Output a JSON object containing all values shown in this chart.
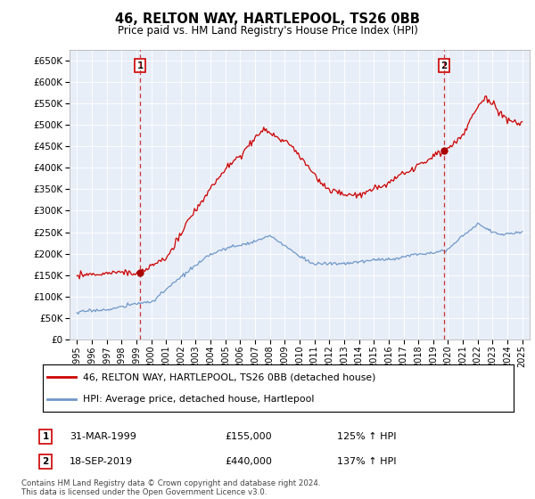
{
  "title": "46, RELTON WAY, HARTLEPOOL, TS26 0BB",
  "subtitle": "Price paid vs. HM Land Registry's House Price Index (HPI)",
  "hpi_label": "HPI: Average price, detached house, Hartlepool",
  "property_label": "46, RELTON WAY, HARTLEPOOL, TS26 0BB (detached house)",
  "sale1_label": "31-MAR-1999",
  "sale1_price": "£155,000",
  "sale1_hpi": "125% ↑ HPI",
  "sale1_price_val": 155000,
  "sale2_label": "18-SEP-2019",
  "sale2_price": "£440,000",
  "sale2_hpi": "137% ↑ HPI",
  "sale2_price_val": 440000,
  "sale1_date_num": 1999.25,
  "sale2_date_num": 2019.72,
  "ylim": [
    0,
    675000
  ],
  "yticks": [
    0,
    50000,
    100000,
    150000,
    200000,
    250000,
    300000,
    350000,
    400000,
    450000,
    500000,
    550000,
    600000,
    650000
  ],
  "xlim_start": 1994.5,
  "xlim_end": 2025.5,
  "hpi_color": "#7098C8",
  "property_color": "#CC0000",
  "marker_color": "#AA0000",
  "vline_color": "#CC3333",
  "background_color": "#FFFFFF",
  "plot_bg_color": "#E8EEF8",
  "grid_color": "#FFFFFF",
  "footer": "Contains HM Land Registry data © Crown copyright and database right 2024.\nThis data is licensed under the Open Government Licence v3.0."
}
